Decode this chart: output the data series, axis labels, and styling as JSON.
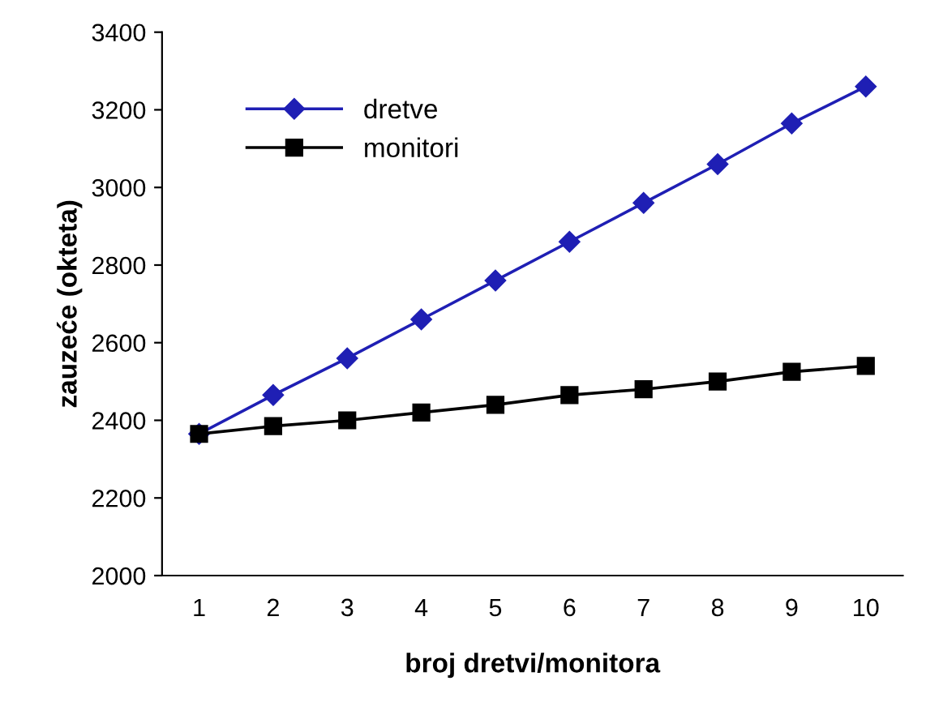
{
  "chart_data": {
    "type": "line",
    "xlabel": "broj dretvi/monitora",
    "ylabel": "zauzeće (okteta)",
    "categories": [
      "1",
      "2",
      "3",
      "4",
      "5",
      "6",
      "7",
      "8",
      "9",
      "10"
    ],
    "series": [
      {
        "name": "dretve",
        "color": "#1f1fb4",
        "marker": "diamond",
        "values": [
          2365,
          2465,
          2560,
          2660,
          2760,
          2860,
          2960,
          3060,
          3165,
          3260
        ]
      },
      {
        "name": "monitori",
        "color": "#000000",
        "marker": "square",
        "values": [
          2365,
          2385,
          2400,
          2420,
          2440,
          2465,
          2480,
          2500,
          2525,
          2540
        ]
      }
    ],
    "ylim": [
      2000,
      3400
    ],
    "yticks": [
      2000,
      2200,
      2400,
      2600,
      2800,
      3000,
      3200,
      3400
    ],
    "grid": false,
    "legend": "top left",
    "line_style": "solid"
  }
}
